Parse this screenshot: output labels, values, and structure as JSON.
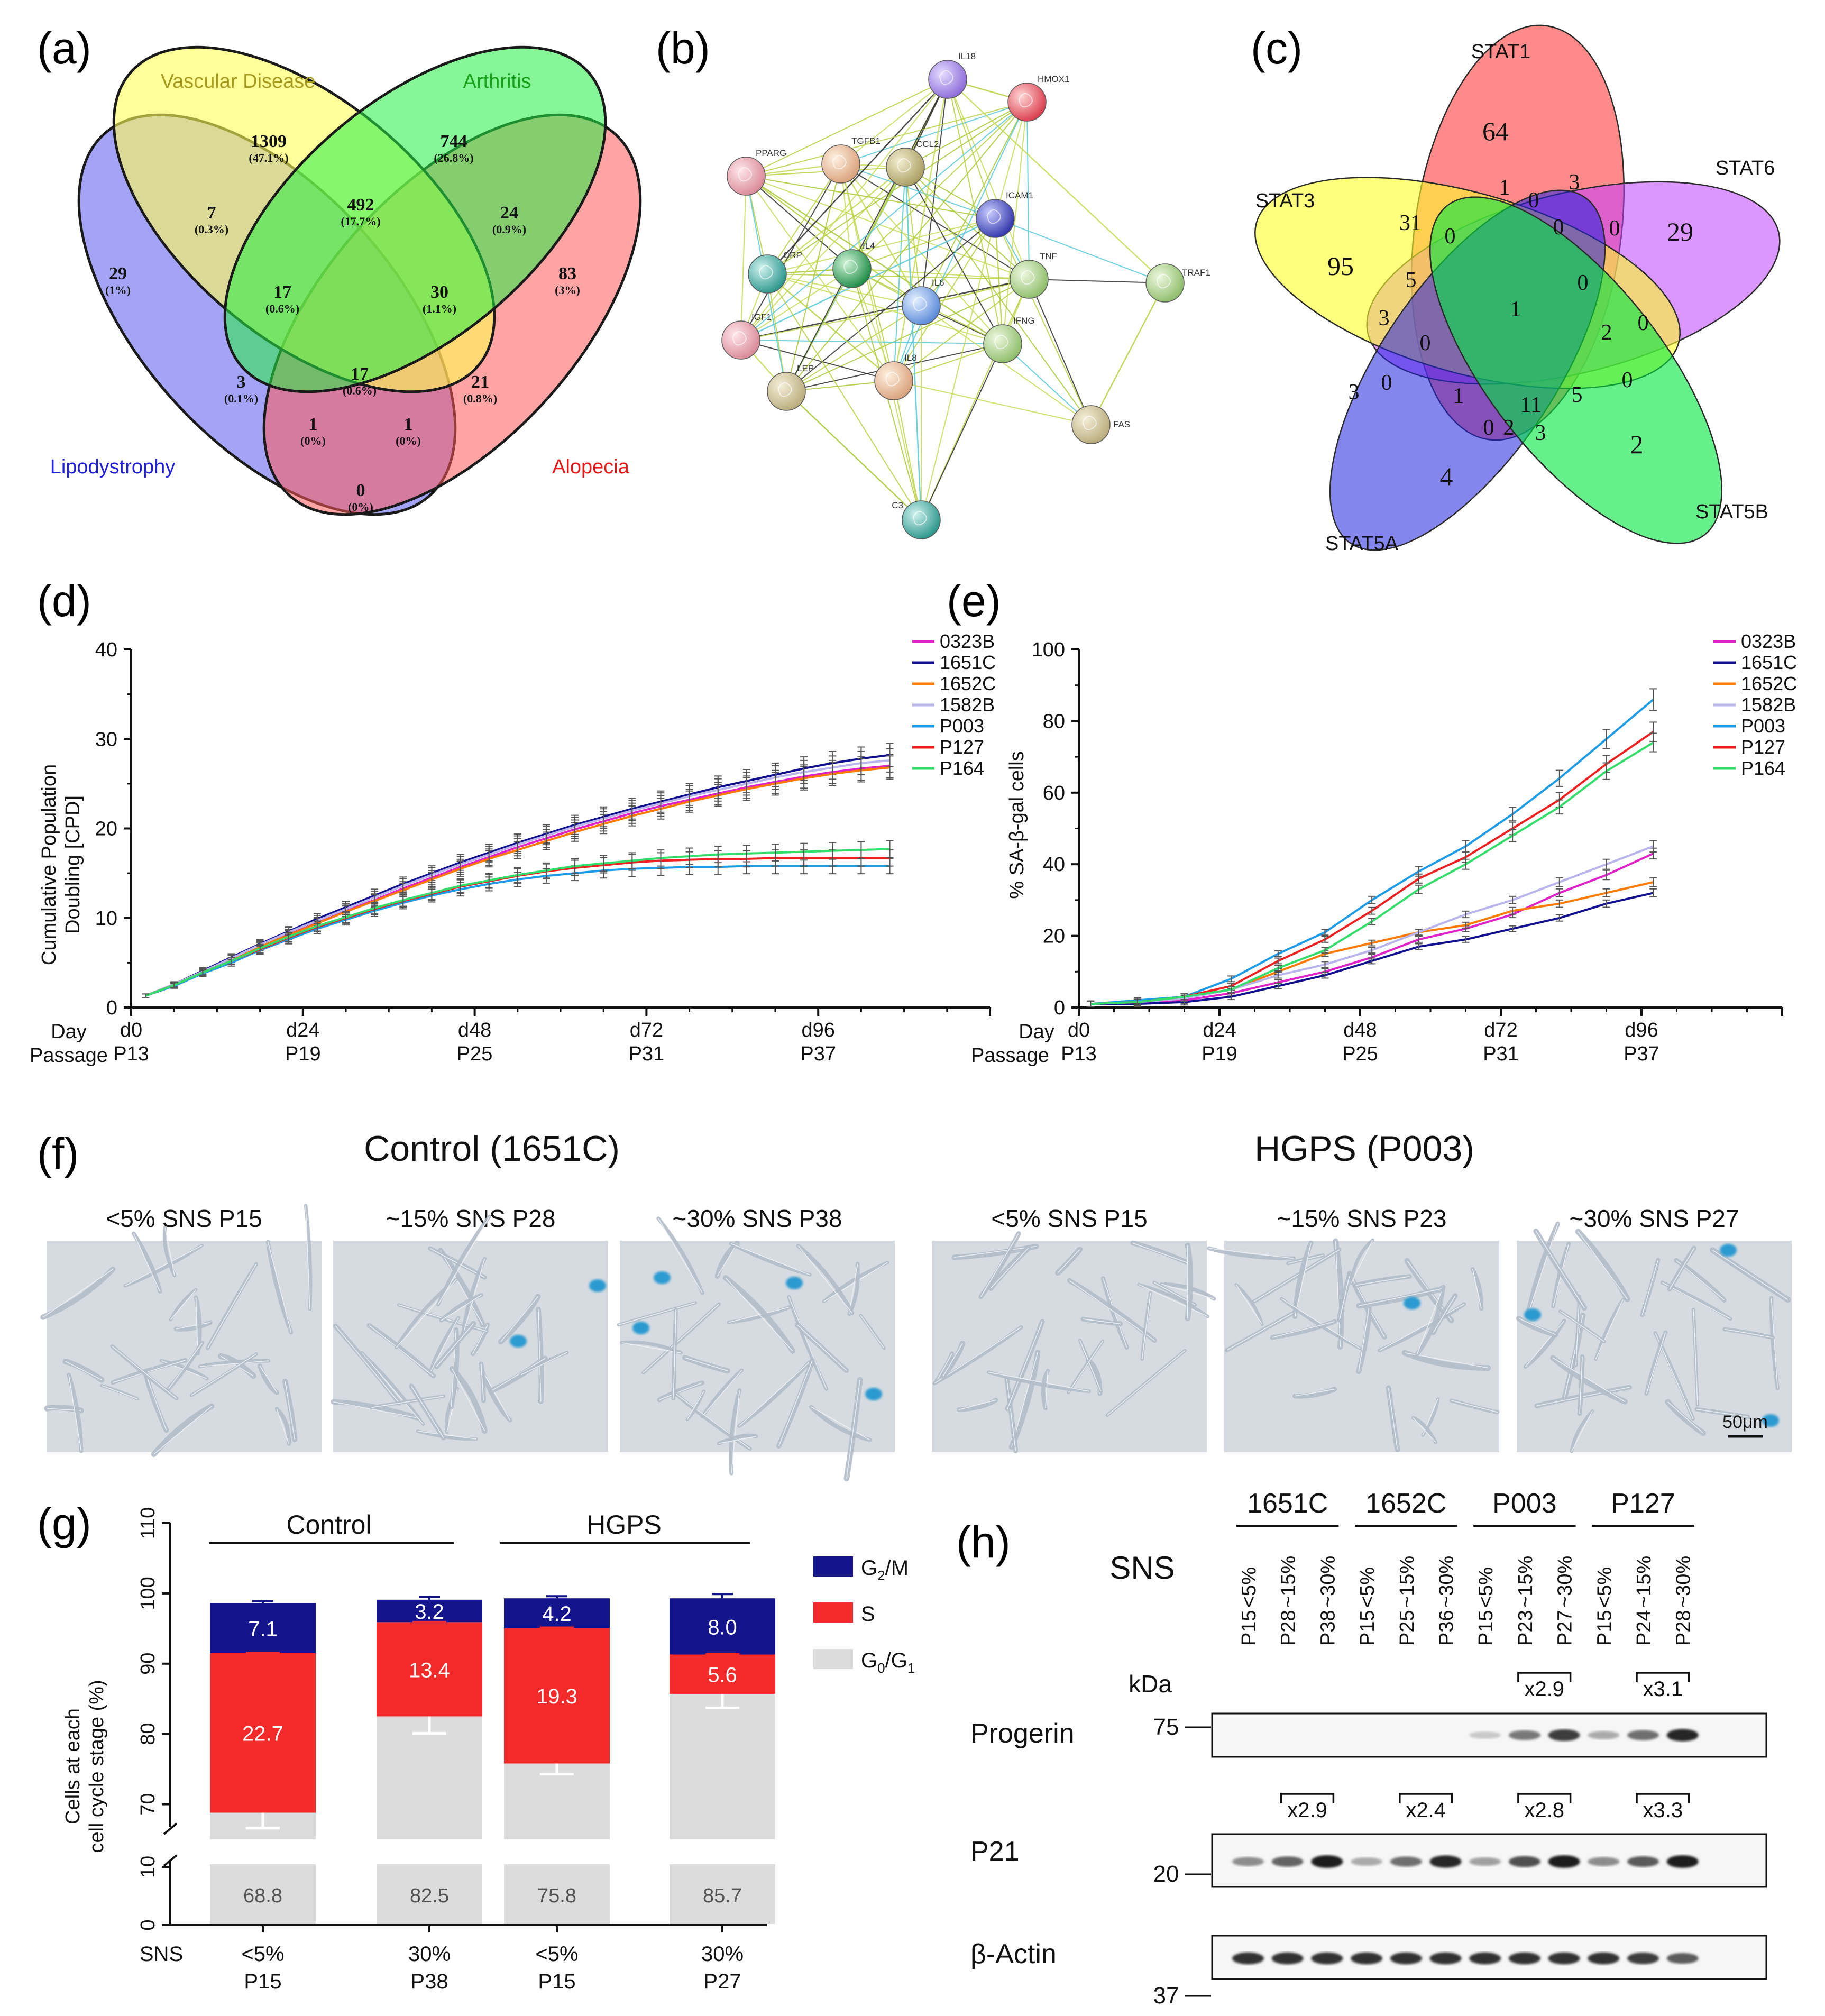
{
  "panels": {
    "a": {
      "letter": "(a)",
      "sets": {
        "vascular": {
          "label": "Vascular Disease",
          "color": "#a79a20"
        },
        "arthritis": {
          "label": "Arthritis",
          "color": "#22a022"
        },
        "lipodystrophy": {
          "label": "Lipodystrophy",
          "color": "#2828d8"
        },
        "alopecia": {
          "label": "Alopecia",
          "color": "#e82020"
        }
      },
      "regions": {
        "v_only": {
          "count": "1309",
          "pct": "(47.1%)"
        },
        "a_only": {
          "count": "744",
          "pct": "(26.8%)"
        },
        "va": {
          "count": "492",
          "pct": "(17.7%)"
        },
        "lv": {
          "count": "7",
          "pct": "(0.3%)"
        },
        "aal": {
          "count": "24",
          "pct": "(0.9%)"
        },
        "l_only": {
          "count": "29",
          "pct": "(1%)"
        },
        "al_only": {
          "count": "83",
          "pct": "(3%)"
        },
        "lva": {
          "count": "17",
          "pct": "(0.6%)"
        },
        "vaal": {
          "count": "30",
          "pct": "(1.1%)"
        },
        "all4": {
          "count": "17",
          "pct": "(0.6%)"
        },
        "la": {
          "count": "3",
          "pct": "(0.1%)"
        },
        "val": {
          "count": "21",
          "pct": "(0.8%)"
        },
        "lval": {
          "count": "1",
          "pct": "(0%)"
        },
        "laal": {
          "count": "1",
          "pct": "(0%)"
        },
        "lal": {
          "count": "0",
          "pct": "(0%)"
        }
      }
    },
    "b": {
      "letter": "(b)",
      "nodes": [
        "IL18",
        "HMOX1",
        "PPARG",
        "TGFB1",
        "CCL2",
        "ICAM1",
        "CRP",
        "IL4",
        "TNF",
        "TRAF1",
        "IL6",
        "IGF1",
        "IFNG",
        "IL8",
        "LEP",
        "FAS",
        "C3"
      ]
    },
    "c": {
      "letter": "(c)",
      "sets": {
        "stat1": "STAT1",
        "stat6": "STAT6",
        "stat3": "STAT3",
        "stat5a": "STAT5A",
        "stat5b": "STAT5B"
      },
      "numbers": [
        "64",
        "1",
        "0",
        "3",
        "31",
        "0",
        "0",
        "0",
        "29",
        "95",
        "5",
        "0",
        "3",
        "1",
        "2",
        "0",
        "0",
        "0",
        "3",
        "1",
        "11",
        "5",
        "0",
        "0",
        "2",
        "3",
        "4",
        "2"
      ]
    },
    "d": {
      "letter": "(d)",
      "ylabel_line1": "Cumulative Population",
      "ylabel_line2": "Doubling [CPD]",
      "yticks": [
        "0",
        "10",
        "20",
        "30",
        "40"
      ],
      "row1_label": "Day",
      "row2_label": "Passage",
      "xticks_day": [
        "d0",
        "d24",
        "d48",
        "d72",
        "d96"
      ],
      "xticks_passage": [
        "P13",
        "P19",
        "P25",
        "P31",
        "P37"
      ]
    },
    "e": {
      "letter": "(e)",
      "ylabel": "% SA-β-gal cells",
      "yticks": [
        "0",
        "20",
        "40",
        "60",
        "80",
        "100"
      ],
      "row1_label": "Day",
      "row2_label": "Passage",
      "xticks_day": [
        "d0",
        "d24",
        "d48",
        "d72",
        "d96"
      ],
      "xticks_passage": [
        "P13",
        "P19",
        "P25",
        "P31",
        "P37"
      ]
    },
    "f": {
      "letter": "(f)",
      "group_control": "Control (1651C)",
      "group_hgps": "HGPS (P003)",
      "captions": [
        "<5% SNS P15",
        "~15% SNS P28",
        "~30% SNS P38",
        "<5% SNS P15",
        "~15% SNS P23",
        "~30% SNS P27"
      ],
      "scalebar": "50μm"
    },
    "g": {
      "letter": "(g)",
      "group_control": "Control",
      "group_hgps": "HGPS",
      "ylabel_line1": "Cells at each",
      "ylabel_line2": "cell cycle stage (%)",
      "yticks_top": [
        "70",
        "80",
        "90",
        "100",
        "110"
      ],
      "yticks_bottom": [
        "0",
        "10"
      ],
      "legend": [
        {
          "main": "G",
          "sub": "2",
          "rest": "/M",
          "color": "#14148c"
        },
        {
          "main": "S",
          "sub": "",
          "rest": "",
          "color": "#f22a2a"
        },
        {
          "main": "G",
          "sub": "0",
          "rest": "/G",
          "sub2": "1",
          "color": "#dcdcdc"
        }
      ],
      "x_row_label": "SNS",
      "x_sns": [
        "<5%",
        "30%",
        "<5%",
        "30%"
      ],
      "x_passage": [
        "P15",
        "P38",
        "P15",
        "P27"
      ]
    },
    "h": {
      "letter": "(h)",
      "sns_label": "SNS",
      "groups": [
        "1651C",
        "1652C",
        "P003",
        "P127"
      ],
      "lanes": [
        {
          "passage": "P15",
          "sns": "<5%"
        },
        {
          "passage": "P28",
          "sns": "~15%"
        },
        {
          "passage": "P38",
          "sns": "~30%"
        },
        {
          "passage": "P15",
          "sns": "<5%"
        },
        {
          "passage": "P25",
          "sns": "~15%"
        },
        {
          "passage": "P36",
          "sns": "~30%"
        },
        {
          "passage": "P15",
          "sns": "<5%"
        },
        {
          "passage": "P23",
          "sns": "~15%"
        },
        {
          "passage": "P27",
          "sns": "~30%"
        },
        {
          "passage": "P15",
          "sns": "<5%"
        },
        {
          "passage": "P24",
          "sns": "~15%"
        },
        {
          "passage": "P28",
          "sns": "~30%"
        }
      ],
      "kda_label": "kDa",
      "blots": [
        {
          "name": "Progerin",
          "kda": "75"
        },
        {
          "name": "P21",
          "kda": "20"
        },
        {
          "name": "β-Actin",
          "kda": "37"
        }
      ],
      "progerin_folds": [
        "x2.9",
        "x3.1"
      ],
      "p21_folds": [
        "x2.9",
        "x2.4",
        "x2.8",
        "x3.3"
      ]
    }
  },
  "chart_data": [
    {
      "panel": "d",
      "type": "line",
      "title": "",
      "xlabel": "Day / Passage",
      "ylabel": "Cumulative Population Doubling [CPD]",
      "xlim": [
        0,
        120
      ],
      "ylim": [
        0,
        40
      ],
      "x": [
        2,
        6,
        10,
        14,
        18,
        22,
        26,
        30,
        34,
        38,
        42,
        46,
        50,
        54,
        58,
        62,
        66,
        70,
        74,
        78,
        82,
        86,
        90,
        94,
        98,
        102,
        106
      ],
      "series": [
        {
          "name": "0323B",
          "color": "#e020c8",
          "values": [
            1.3,
            2.6,
            4.0,
            5.5,
            6.9,
            8.2,
            9.5,
            10.8,
            12.0,
            13.3,
            14.5,
            15.7,
            16.8,
            17.9,
            18.9,
            19.9,
            20.8,
            21.7,
            22.5,
            23.2,
            23.9,
            24.6,
            25.2,
            25.8,
            26.3,
            26.7,
            27.0
          ]
        },
        {
          "name": "1651C",
          "color": "#101090",
          "values": [
            1.3,
            2.6,
            4.1,
            5.6,
            7.1,
            8.5,
            9.9,
            11.2,
            12.5,
            13.8,
            15.0,
            16.2,
            17.3,
            18.4,
            19.4,
            20.4,
            21.3,
            22.2,
            23.0,
            23.8,
            24.6,
            25.3,
            26.0,
            26.7,
            27.3,
            27.8,
            28.2
          ]
        },
        {
          "name": "1652C",
          "color": "#ff7a00",
          "values": [
            1.3,
            2.6,
            4.0,
            5.4,
            6.8,
            8.1,
            9.4,
            10.7,
            11.9,
            13.1,
            14.3,
            15.5,
            16.6,
            17.6,
            18.6,
            19.6,
            20.5,
            21.4,
            22.2,
            23.0,
            23.7,
            24.4,
            25.0,
            25.6,
            26.1,
            26.5,
            26.8
          ]
        },
        {
          "name": "1582B",
          "color": "#b9b4ec",
          "values": [
            1.3,
            2.6,
            4.0,
            5.5,
            7.0,
            8.4,
            9.7,
            11.0,
            12.3,
            13.6,
            14.8,
            16.0,
            17.1,
            18.2,
            19.2,
            20.2,
            21.1,
            22.0,
            22.8,
            23.6,
            24.3,
            25.0,
            25.7,
            26.3,
            26.8,
            27.3,
            27.6
          ]
        },
        {
          "name": "P003",
          "color": "#1c9ce8",
          "values": [
            1.3,
            2.4,
            3.8,
            5.0,
            6.4,
            7.6,
            8.8,
            9.8,
            10.8,
            11.7,
            12.5,
            13.2,
            13.8,
            14.3,
            14.7,
            15.0,
            15.3,
            15.5,
            15.6,
            15.7,
            15.7,
            15.8,
            15.8,
            15.8,
            15.8,
            15.8,
            15.8
          ]
        },
        {
          "name": "P127",
          "color": "#ee2020",
          "values": [
            1.3,
            2.5,
            3.9,
            5.2,
            6.5,
            7.8,
            9.0,
            10.0,
            11.0,
            11.9,
            12.7,
            13.5,
            14.1,
            14.7,
            15.2,
            15.6,
            15.9,
            16.2,
            16.4,
            16.5,
            16.6,
            16.6,
            16.7,
            16.7,
            16.7,
            16.7,
            16.7
          ]
        },
        {
          "name": "P164",
          "color": "#33dd6a",
          "values": [
            1.3,
            2.5,
            3.9,
            5.2,
            6.6,
            7.9,
            9.1,
            10.1,
            11.1,
            12.0,
            12.8,
            13.6,
            14.2,
            14.8,
            15.3,
            15.8,
            16.1,
            16.4,
            16.7,
            16.9,
            17.1,
            17.2,
            17.3,
            17.4,
            17.5,
            17.6,
            17.7
          ]
        }
      ]
    },
    {
      "panel": "e",
      "type": "line",
      "title": "",
      "xlabel": "Day / Passage",
      "ylabel": "% SA-β-gal cells",
      "xlim": [
        0,
        120
      ],
      "ylim": [
        0,
        100
      ],
      "x": [
        2,
        10,
        18,
        26,
        34,
        42,
        50,
        58,
        66,
        74,
        82,
        90,
        98
      ],
      "series": [
        {
          "name": "0323B",
          "color": "#e020c8",
          "values": [
            1,
            1.2,
            2,
            4,
            7,
            10,
            14,
            19,
            22,
            26,
            32,
            37,
            43
          ]
        },
        {
          "name": "1651C",
          "color": "#101090",
          "values": [
            1,
            1,
            1.5,
            3,
            6,
            9,
            13,
            17,
            19,
            22,
            25,
            29,
            32
          ]
        },
        {
          "name": "1652C",
          "color": "#ff7a00",
          "values": [
            1,
            1.5,
            3,
            5,
            10,
            15,
            18,
            21,
            23,
            27,
            29,
            32,
            35
          ]
        },
        {
          "name": "1582B",
          "color": "#b9b4ec",
          "values": [
            1,
            1.5,
            2.5,
            5,
            9,
            12,
            16,
            21,
            26,
            30,
            35,
            40,
            45
          ]
        },
        {
          "name": "P003",
          "color": "#1c9ce8",
          "values": [
            1,
            2,
            3,
            8,
            15,
            21,
            30,
            38,
            45,
            54,
            64,
            75,
            86
          ]
        },
        {
          "name": "P127",
          "color": "#ee2020",
          "values": [
            1,
            1.5,
            3,
            6,
            13,
            19,
            27,
            36,
            42,
            50,
            58,
            68,
            77
          ]
        },
        {
          "name": "P164",
          "color": "#33dd6a",
          "values": [
            1,
            1.5,
            3,
            5,
            11,
            16,
            24,
            33,
            40,
            48,
            56,
            66,
            74
          ]
        }
      ]
    },
    {
      "panel": "g",
      "type": "bar",
      "stacked": true,
      "title": "",
      "ylabel": "Cells at each cell cycle stage (%)",
      "ylim": [
        0,
        110
      ],
      "categories": [
        "<5% P15 Control",
        "30% P38 Control",
        "<5% P15 HGPS",
        "30% P27 HGPS"
      ],
      "series": [
        {
          "name": "G0/G1",
          "color": "#dcdcdc",
          "values": [
            68.8,
            82.5,
            75.8,
            85.7
          ],
          "labels": [
            "68.8",
            "82.5",
            "75.8",
            "85.7"
          ]
        },
        {
          "name": "S",
          "color": "#f22a2a",
          "values": [
            22.7,
            13.4,
            19.3,
            5.6
          ],
          "labels": [
            "22.7",
            "13.4",
            "19.3",
            "5.6"
          ]
        },
        {
          "name": "G2/M",
          "color": "#14148c",
          "values": [
            7.1,
            3.2,
            4.2,
            8.0
          ],
          "labels": [
            "7.1",
            "3.2",
            "4.2",
            "8.0"
          ]
        }
      ]
    }
  ]
}
